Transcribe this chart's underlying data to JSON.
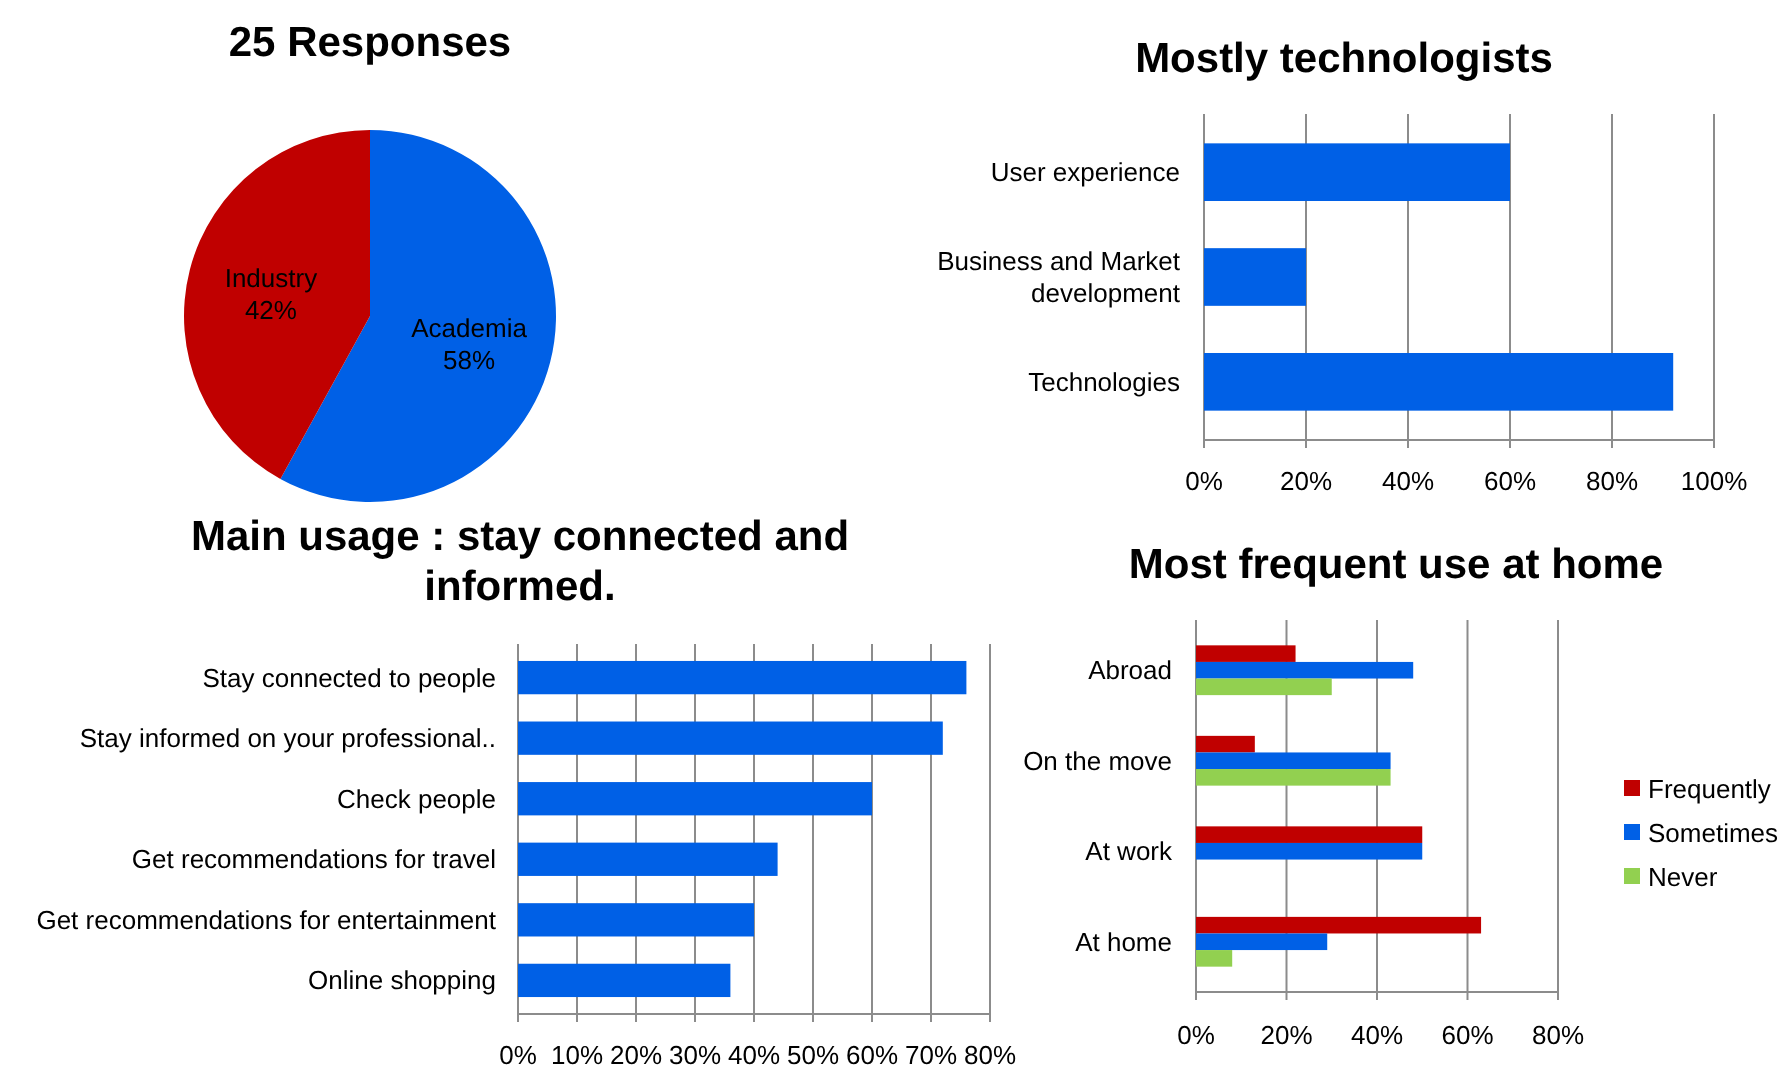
{
  "chart_data": [
    {
      "type": "pie",
      "title": "25 Responses",
      "categories": [
        "Academia",
        "Industry"
      ],
      "values": [
        58,
        42
      ],
      "colors": [
        "#0060e6",
        "#c00000"
      ],
      "value_labels": [
        "58%",
        "42%"
      ],
      "legend": false
    },
    {
      "type": "bar",
      "orientation": "horizontal",
      "title": "Mostly technologists",
      "categories": [
        "User experience",
        "Business and Market development",
        "Technologies"
      ],
      "values": [
        60,
        20,
        92
      ],
      "color": "#0060e6",
      "xlim": [
        0,
        100
      ],
      "xticks": [
        {
          "value": 0,
          "label": "0%"
        },
        {
          "value": 20,
          "label": "20%"
        },
        {
          "value": 40,
          "label": "40%"
        },
        {
          "value": 60,
          "label": "60%"
        },
        {
          "value": 80,
          "label": "80%"
        },
        {
          "value": 100,
          "label": "100%"
        }
      ],
      "grid": "x"
    },
    {
      "type": "bar",
      "orientation": "horizontal",
      "title": "Main usage : stay connected and informed.",
      "categories": [
        "Stay connected to people",
        "Stay informed on your professional..",
        "Check people",
        "Get recommendations for travel",
        "Get recommendations for entertainment",
        "Online shopping"
      ],
      "values": [
        76,
        72,
        60,
        44,
        40,
        36
      ],
      "color": "#0060e6",
      "xlim": [
        0,
        80
      ],
      "xticks": [
        {
          "value": 0,
          "label": "0%"
        },
        {
          "value": 10,
          "label": "10%"
        },
        {
          "value": 20,
          "label": "20%"
        },
        {
          "value": 30,
          "label": "30%"
        },
        {
          "value": 40,
          "label": "40%"
        },
        {
          "value": 50,
          "label": "50%"
        },
        {
          "value": 60,
          "label": "60%"
        },
        {
          "value": 70,
          "label": "70%"
        },
        {
          "value": 80,
          "label": "80%"
        }
      ],
      "grid": "x"
    },
    {
      "type": "bar",
      "orientation": "horizontal",
      "title": "Most frequent use at home",
      "categories": [
        "Abroad",
        "On the move",
        "At work",
        "At home"
      ],
      "series": [
        {
          "name": "Frequently",
          "color": "#c00000",
          "values": [
            22,
            13,
            50,
            63
          ]
        },
        {
          "name": "Sometimes",
          "color": "#0060e6",
          "values": [
            48,
            43,
            50,
            29
          ]
        },
        {
          "name": "Never",
          "color": "#92d050",
          "values": [
            30,
            43,
            0,
            8
          ]
        }
      ],
      "xlim": [
        0,
        80
      ],
      "xticks": [
        {
          "value": 0,
          "label": "0%"
        },
        {
          "value": 20,
          "label": "20%"
        },
        {
          "value": 40,
          "label": "40%"
        },
        {
          "value": 60,
          "label": "60%"
        },
        {
          "value": 80,
          "label": "80%"
        }
      ],
      "grid": "x",
      "legend": "right"
    }
  ]
}
